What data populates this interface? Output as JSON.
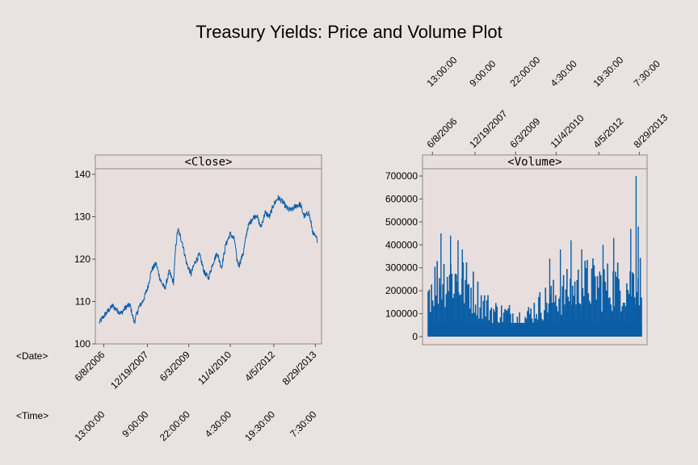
{
  "figure": {
    "title": "Treasury Yields: Price and Volume Plot",
    "background": "#e8e2e0",
    "panel_background": "#e8dedd",
    "series_color": "#0b5ea6",
    "frame_color": "#8a8a8a"
  },
  "row_labels": {
    "date": "<Date>",
    "time": "<Time>"
  },
  "chart_data": [
    {
      "type": "line",
      "panel_label": "<Close>",
      "ylim": [
        100,
        140
      ],
      "yticks": [
        100,
        110,
        120,
        130,
        140
      ],
      "date_ticks": [
        "6/8/2006",
        "12/19/2007",
        "6/3/2009",
        "11/4/2010",
        "4/5/2012",
        "8/29/2013"
      ],
      "time_ticks": [
        "13:00:00",
        "9:00:00",
        "22:00:00",
        "4:30:00",
        "19:30:00",
        "7:30:00"
      ],
      "tick_positions": [
        0.02,
        0.22,
        0.41,
        0.6,
        0.8,
        0.99
      ],
      "x": [
        0.0,
        0.02,
        0.04,
        0.06,
        0.08,
        0.1,
        0.12,
        0.14,
        0.16,
        0.18,
        0.2,
        0.22,
        0.24,
        0.26,
        0.28,
        0.3,
        0.32,
        0.34,
        0.35,
        0.36,
        0.38,
        0.4,
        0.42,
        0.44,
        0.46,
        0.48,
        0.5,
        0.52,
        0.54,
        0.56,
        0.58,
        0.6,
        0.62,
        0.63,
        0.64,
        0.66,
        0.68,
        0.7,
        0.72,
        0.74,
        0.76,
        0.78,
        0.8,
        0.82,
        0.84,
        0.86,
        0.88,
        0.9,
        0.92,
        0.94,
        0.96,
        0.98,
        1.0
      ],
      "y": [
        105.0,
        106.5,
        107.8,
        109.0,
        108.0,
        107.2,
        108.6,
        109.2,
        105.0,
        108.5,
        110.2,
        113.0,
        117.5,
        119.0,
        115.0,
        113.0,
        117.0,
        114.5,
        123.0,
        127.0,
        124.0,
        119.0,
        116.5,
        119.5,
        121.0,
        117.0,
        115.5,
        119.0,
        121.5,
        118.0,
        123.5,
        126.0,
        124.5,
        120.0,
        118.5,
        121.5,
        127.5,
        129.5,
        130.5,
        127.5,
        131.0,
        130.0,
        133.0,
        134.5,
        133.5,
        132.0,
        131.5,
        132.5,
        133.0,
        130.0,
        131.0,
        126.0,
        124.5
      ]
    },
    {
      "type": "bar",
      "panel_label": "<Volume>",
      "ylim": [
        0,
        700000
      ],
      "yticks": [
        0,
        100000,
        200000,
        300000,
        400000,
        500000,
        600000,
        700000
      ],
      "date_ticks": [
        "6/8/2006",
        "12/19/2007",
        "6/3/2009",
        "11/4/2010",
        "4/5/2012",
        "8/29/2013"
      ],
      "time_ticks": [
        "13:00:00",
        "9:00:00",
        "22:00:00",
        "4:30:00",
        "19:30:00",
        "7:30:00"
      ],
      "tick_positions": [
        0.02,
        0.22,
        0.41,
        0.6,
        0.8,
        0.99
      ],
      "x": [
        0.0,
        0.05,
        0.1,
        0.13,
        0.2,
        0.25,
        0.3,
        0.35,
        0.4,
        0.45,
        0.5,
        0.55,
        0.6,
        0.65,
        0.7,
        0.75,
        0.8,
        0.85,
        0.9,
        0.95,
        0.97,
        1.0
      ],
      "envelope": [
        270000,
        330000,
        360000,
        330000,
        280000,
        200000,
        150000,
        130000,
        130000,
        100000,
        160000,
        200000,
        230000,
        260000,
        280000,
        310000,
        300000,
        290000,
        300000,
        300000,
        350000,
        320000
      ],
      "spikes": [
        {
          "x": 0.06,
          "value": 450000
        },
        {
          "x": 0.105,
          "value": 440000
        },
        {
          "x": 0.14,
          "value": 420000
        },
        {
          "x": 0.16,
          "value": 380000
        },
        {
          "x": 0.57,
          "value": 340000
        },
        {
          "x": 0.62,
          "value": 380000
        },
        {
          "x": 0.67,
          "value": 420000
        },
        {
          "x": 0.72,
          "value": 380000
        },
        {
          "x": 0.82,
          "value": 400000
        },
        {
          "x": 0.87,
          "value": 430000
        },
        {
          "x": 0.95,
          "value": 470000
        },
        {
          "x": 0.975,
          "value": 700000
        },
        {
          "x": 0.985,
          "value": 480000
        }
      ]
    }
  ]
}
